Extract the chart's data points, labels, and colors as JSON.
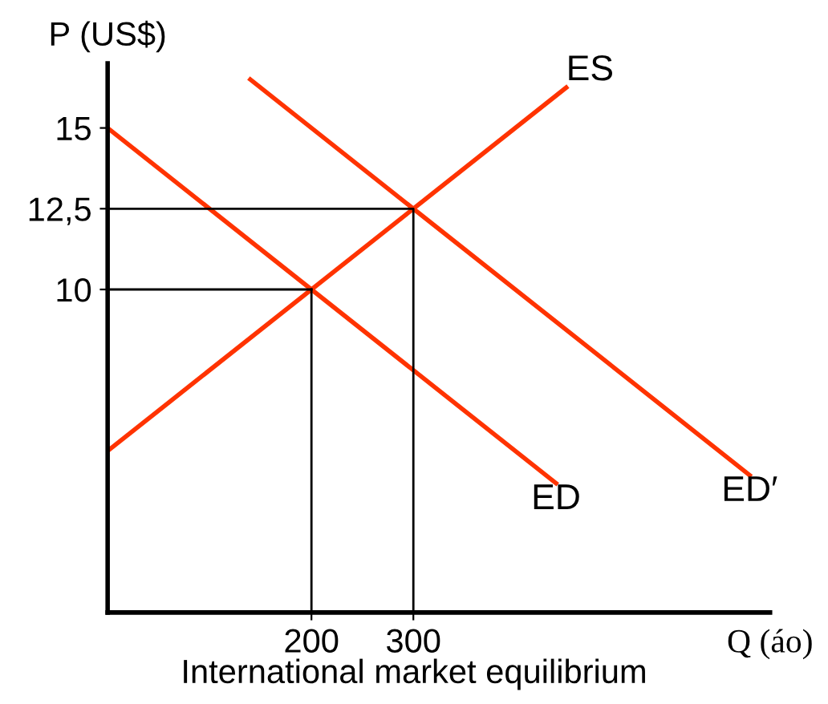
{
  "chart_data": {
    "type": "line",
    "title": "International market equilibrium",
    "xlabel": "Q (áo)",
    "ylabel": "P (US$)",
    "xlim": [
      0,
      650
    ],
    "ylim": [
      0,
      17
    ],
    "xticks": [
      200,
      300
    ],
    "yticks": [
      10,
      {
        "value": 12.5,
        "label": "12,5"
      },
      15
    ],
    "grid": false,
    "legend": false,
    "marker": "none",
    "line_style": "solid",
    "series": [
      {
        "name": "ES",
        "color": "#ff3300",
        "x": [
          0,
          450
        ],
        "values": [
          5,
          16.25
        ]
      },
      {
        "name": "ED",
        "color": "#ff3300",
        "x": [
          0,
          440
        ],
        "values": [
          15,
          4
        ]
      },
      {
        "name": "ED′",
        "color": "#ff3300",
        "x": [
          140,
          630
        ],
        "values": [
          16.5,
          4.25
        ]
      },
      {
        "color": "#000000",
        "x": [
          0,
          300,
          300
        ],
        "values": [
          12.5,
          12.5,
          0
        ]
      },
      {
        "color": "#000000",
        "x": [
          200,
          200
        ],
        "values": [
          10,
          0
        ]
      },
      {
        "color": "#000000",
        "x": [
          0,
          200
        ],
        "values": [
          10,
          10
        ]
      }
    ]
  }
}
